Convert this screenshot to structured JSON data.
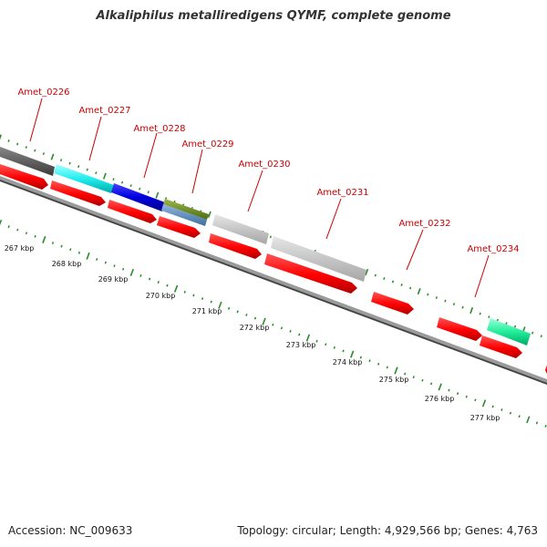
{
  "title": "Alkaliphilus metalliredigens QYMF, complete genome",
  "footer": {
    "accession": "Accession: NC_009633",
    "summary": "Topology: circular; Length: 4,929,566 bp; Genes: 4,763"
  },
  "kbp_labels": [
    "267 kbp",
    "268 kbp",
    "269 kbp",
    "270 kbp",
    "271 kbp",
    "272 kbp",
    "273 kbp",
    "274 kbp",
    "275 kbp",
    "276 kbp",
    "277 kbp"
  ],
  "gene_labels": [
    "Amet_0226",
    "Amet_0227",
    "Amet_0228",
    "Amet_0229",
    "Amet_0230",
    "Amet_0231",
    "Amet_0232",
    "Amet_0234"
  ],
  "colors": {
    "reverse_strand_gene": "#ff0000",
    "gene_label": "#cc0000",
    "tick": "#2a8a2a",
    "backbone": "#888888",
    "forward_genes": [
      "#555555",
      "#22eeee",
      "#0000dd",
      "#6b8e23",
      "#bbbbbb",
      "#bbbbbb",
      "#22ee99"
    ]
  }
}
